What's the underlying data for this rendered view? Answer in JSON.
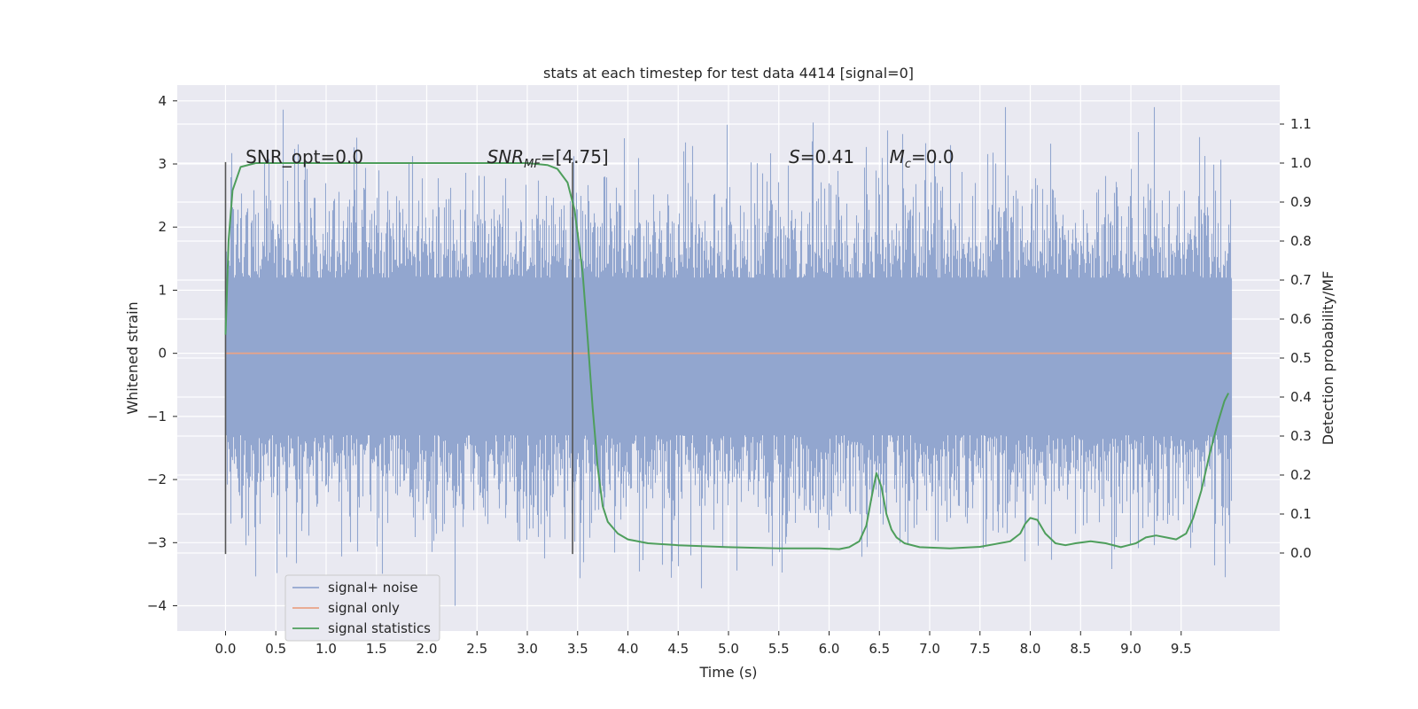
{
  "chart_data": {
    "type": "line",
    "title": "stats at each timestep for test data 4414 [signal=0]",
    "xlabel": "Time (s)",
    "ylabel": "Whitened strain",
    "y2label": "Detection probability/MF",
    "xlim": [
      -0.48,
      10.48
    ],
    "ylim": [
      -4.4,
      4.25
    ],
    "y2lim": [
      -0.2,
      1.2
    ],
    "x_ticks": [
      0.0,
      0.5,
      1.0,
      1.5,
      2.0,
      2.5,
      3.0,
      3.5,
      4.0,
      4.5,
      5.0,
      5.5,
      6.0,
      6.5,
      7.0,
      7.5,
      8.0,
      8.5,
      9.0,
      9.5
    ],
    "x_tick_labels": [
      "0.0",
      "0.5",
      "1.0",
      "1.5",
      "2.0",
      "2.5",
      "3.0",
      "3.5",
      "4.0",
      "4.5",
      "5.0",
      "5.5",
      "6.0",
      "6.5",
      "7.0",
      "7.5",
      "8.0",
      "8.5",
      "9.0",
      "9.5"
    ],
    "y_ticks": [
      4,
      3,
      2,
      1,
      0,
      -1,
      -2,
      -3,
      -4
    ],
    "y_tick_labels": [
      "4",
      "3",
      "2",
      "1",
      "0",
      "−1",
      "−2",
      "−3",
      "−4"
    ],
    "y2_ticks": [
      1.1,
      1.0,
      0.9,
      0.8,
      0.7,
      0.6,
      0.5,
      0.4,
      0.3,
      0.2,
      0.1,
      0.0
    ],
    "y2_tick_labels": [
      "1.1",
      "1.0",
      "0.9",
      "0.8",
      "0.7",
      "0.6",
      "0.5",
      "0.4",
      "0.3",
      "0.2",
      "0.1",
      "0.0"
    ],
    "grid": true,
    "legend_position": "bottom-left",
    "series": [
      {
        "name": "signal+ noise",
        "color": "#92a6cf",
        "axis": "left",
        "kind": "noise",
        "x_range": [
          0.0,
          10.0
        ],
        "typical_range": [
          -1.3,
          1.2
        ],
        "peak_range": [
          -4.0,
          3.9
        ]
      },
      {
        "name": "signal only",
        "color": "#e9a386",
        "axis": "left",
        "x": [
          0.0,
          10.0
        ],
        "y": [
          0.0,
          0.0
        ]
      },
      {
        "name": "signal statistics",
        "color": "#4e9e5c",
        "axis": "right",
        "x": [
          0.0,
          0.03,
          0.07,
          0.15,
          0.3,
          0.6,
          1.0,
          1.5,
          2.0,
          2.5,
          3.0,
          3.2,
          3.3,
          3.4,
          3.47,
          3.55,
          3.6,
          3.65,
          3.7,
          3.75,
          3.8,
          3.9,
          4.0,
          4.2,
          4.5,
          5.0,
          5.5,
          5.9,
          6.1,
          6.2,
          6.3,
          6.37,
          6.42,
          6.47,
          6.52,
          6.57,
          6.62,
          6.67,
          6.75,
          6.9,
          7.2,
          7.5,
          7.8,
          7.9,
          7.95,
          8.0,
          8.07,
          8.15,
          8.25,
          8.35,
          8.45,
          8.6,
          8.75,
          8.9,
          9.05,
          9.15,
          9.25,
          9.35,
          9.45,
          9.55,
          9.62,
          9.7,
          9.78,
          9.86,
          9.93,
          9.97
        ],
        "y": [
          0.56,
          0.8,
          0.93,
          0.99,
          1.0,
          1.0,
          1.0,
          1.0,
          1.0,
          1.0,
          1.0,
          0.995,
          0.985,
          0.95,
          0.88,
          0.72,
          0.55,
          0.37,
          0.22,
          0.12,
          0.08,
          0.05,
          0.035,
          0.025,
          0.02,
          0.015,
          0.012,
          0.012,
          0.01,
          0.015,
          0.03,
          0.07,
          0.14,
          0.205,
          0.17,
          0.1,
          0.06,
          0.04,
          0.025,
          0.015,
          0.012,
          0.016,
          0.03,
          0.05,
          0.075,
          0.09,
          0.085,
          0.05,
          0.025,
          0.02,
          0.025,
          0.03,
          0.025,
          0.015,
          0.025,
          0.04,
          0.045,
          0.04,
          0.035,
          0.05,
          0.09,
          0.16,
          0.25,
          0.33,
          0.39,
          0.41
        ]
      }
    ],
    "vertical_markers": [
      0.0,
      3.45
    ],
    "annotations": [
      {
        "x": 0.2,
        "y2": 1.0,
        "text": "SNR_opt=0.0",
        "style": "plain"
      },
      {
        "x": 2.6,
        "y2": 1.0,
        "base": "SNR",
        "sub": "MF",
        "rest": "=[4.75]",
        "style": "math"
      },
      {
        "x": 5.6,
        "y2": 1.0,
        "base": "S",
        "rest": "=0.41",
        "style": "math"
      },
      {
        "x": 6.6,
        "y2": 1.0,
        "base": "M",
        "sub": "c",
        "rest": "=0.0",
        "style": "math"
      }
    ]
  },
  "colors": {
    "axes_background": "#e9e9f1",
    "grid": "#ffffff",
    "text": "#262626",
    "marker_line": "#555555"
  }
}
